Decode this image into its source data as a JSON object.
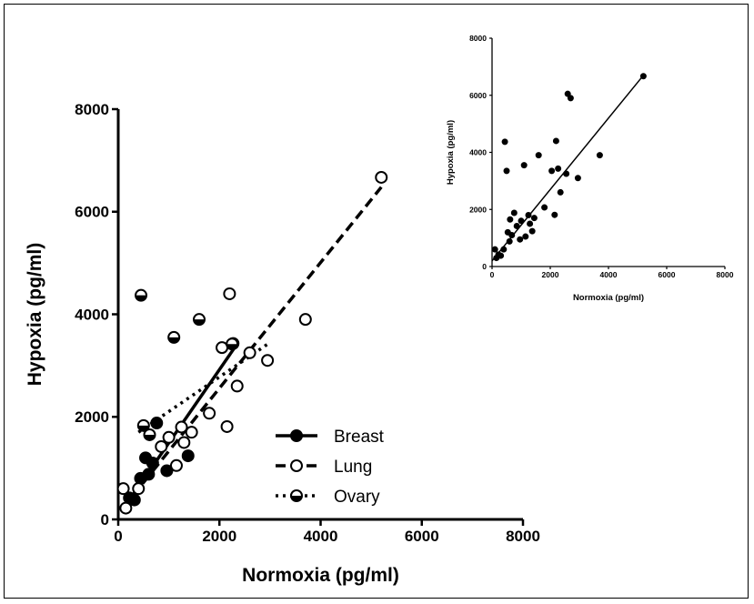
{
  "colors": {
    "ink": "#000000",
    "background": "#ffffff"
  },
  "chart_data": [
    {
      "type": "scatter",
      "xlabel": "Normoxia (pg/ml)",
      "ylabel": "Hypoxia (pg/ml)",
      "xlim": [
        0,
        8000
      ],
      "ylim": [
        0,
        8000
      ],
      "xticks": [
        "0",
        "2000",
        "4000",
        "6000",
        "8000"
      ],
      "yticks": [
        "0",
        "2000",
        "4000",
        "6000",
        "8000"
      ],
      "grid": false,
      "legend_position": "bottom-center",
      "series": [
        {
          "name": "Breast",
          "marker": "filled-circle",
          "line_style": "solid",
          "points": [
            [
              220,
              420
            ],
            [
              320,
              380
            ],
            [
              440,
              800
            ],
            [
              540,
              1200
            ],
            [
              600,
              880
            ],
            [
              680,
              1100
            ],
            [
              760,
              1880
            ],
            [
              960,
              950
            ],
            [
              1380,
              1240
            ],
            [
              2270,
              3430
            ]
          ],
          "fit": [
            [
              250,
              420
            ],
            [
              2300,
              3350
            ]
          ]
        },
        {
          "name": "Lung",
          "marker": "open-circle",
          "line_style": "dashed",
          "points": [
            [
              100,
              600
            ],
            [
              150,
              220
            ],
            [
              400,
              600
            ],
            [
              850,
              1420
            ],
            [
              1000,
              1600
            ],
            [
              1150,
              1050
            ],
            [
              1250,
              1800
            ],
            [
              1300,
              1500
            ],
            [
              1450,
              1700
            ],
            [
              1800,
              2070
            ],
            [
              2050,
              3350
            ],
            [
              2150,
              1810
            ],
            [
              2200,
              4400
            ],
            [
              2350,
              2600
            ],
            [
              2600,
              3250
            ],
            [
              2950,
              3100
            ],
            [
              3700,
              3900
            ],
            [
              5200,
              6670
            ]
          ],
          "fit": [
            [
              100,
              230
            ],
            [
              5200,
              6480
            ]
          ]
        },
        {
          "name": "Ovary",
          "marker": "half-filled-circle",
          "line_style": "dotted",
          "points": [
            [
              450,
              4370
            ],
            [
              500,
              1830
            ],
            [
              620,
              1650
            ],
            [
              1100,
              3550
            ],
            [
              1600,
              3900
            ],
            [
              2250,
              3420
            ]
          ],
          "fit": [
            [
              400,
              1700
            ],
            [
              3000,
              3450
            ]
          ]
        }
      ]
    },
    {
      "type": "scatter",
      "xlabel": "Normoxia (pg/ml)",
      "ylabel": "Hypoxia (pg/ml)",
      "xlim": [
        0,
        8000
      ],
      "ylim": [
        0,
        8000
      ],
      "xticks": [
        "0",
        "2000",
        "4000",
        "6000",
        "8000"
      ],
      "yticks": [
        "0",
        "2000",
        "4000",
        "6000",
        "8000"
      ],
      "grid": false,
      "series": [
        {
          "marker": "filled-circle",
          "line_style": "solid",
          "points": [
            [
              100,
              600
            ],
            [
              150,
              300
            ],
            [
              220,
              420
            ],
            [
              300,
              380
            ],
            [
              400,
              600
            ],
            [
              440,
              4370
            ],
            [
              500,
              3350
            ],
            [
              540,
              1200
            ],
            [
              600,
              880
            ],
            [
              620,
              1650
            ],
            [
              680,
              1100
            ],
            [
              760,
              1880
            ],
            [
              850,
              1420
            ],
            [
              960,
              950
            ],
            [
              1000,
              1600
            ],
            [
              1100,
              3550
            ],
            [
              1150,
              1050
            ],
            [
              1250,
              1800
            ],
            [
              1300,
              1500
            ],
            [
              1380,
              1240
            ],
            [
              1450,
              1700
            ],
            [
              1600,
              3900
            ],
            [
              1800,
              2070
            ],
            [
              2050,
              3350
            ],
            [
              2150,
              1810
            ],
            [
              2200,
              4400
            ],
            [
              2270,
              3430
            ],
            [
              2350,
              2600
            ],
            [
              2550,
              3250
            ],
            [
              2600,
              6050
            ],
            [
              2700,
              5900
            ],
            [
              2950,
              3100
            ],
            [
              3700,
              3900
            ],
            [
              5200,
              6670
            ]
          ],
          "fit": [
            [
              0,
              200
            ],
            [
              5200,
              6700
            ]
          ]
        }
      ]
    }
  ]
}
